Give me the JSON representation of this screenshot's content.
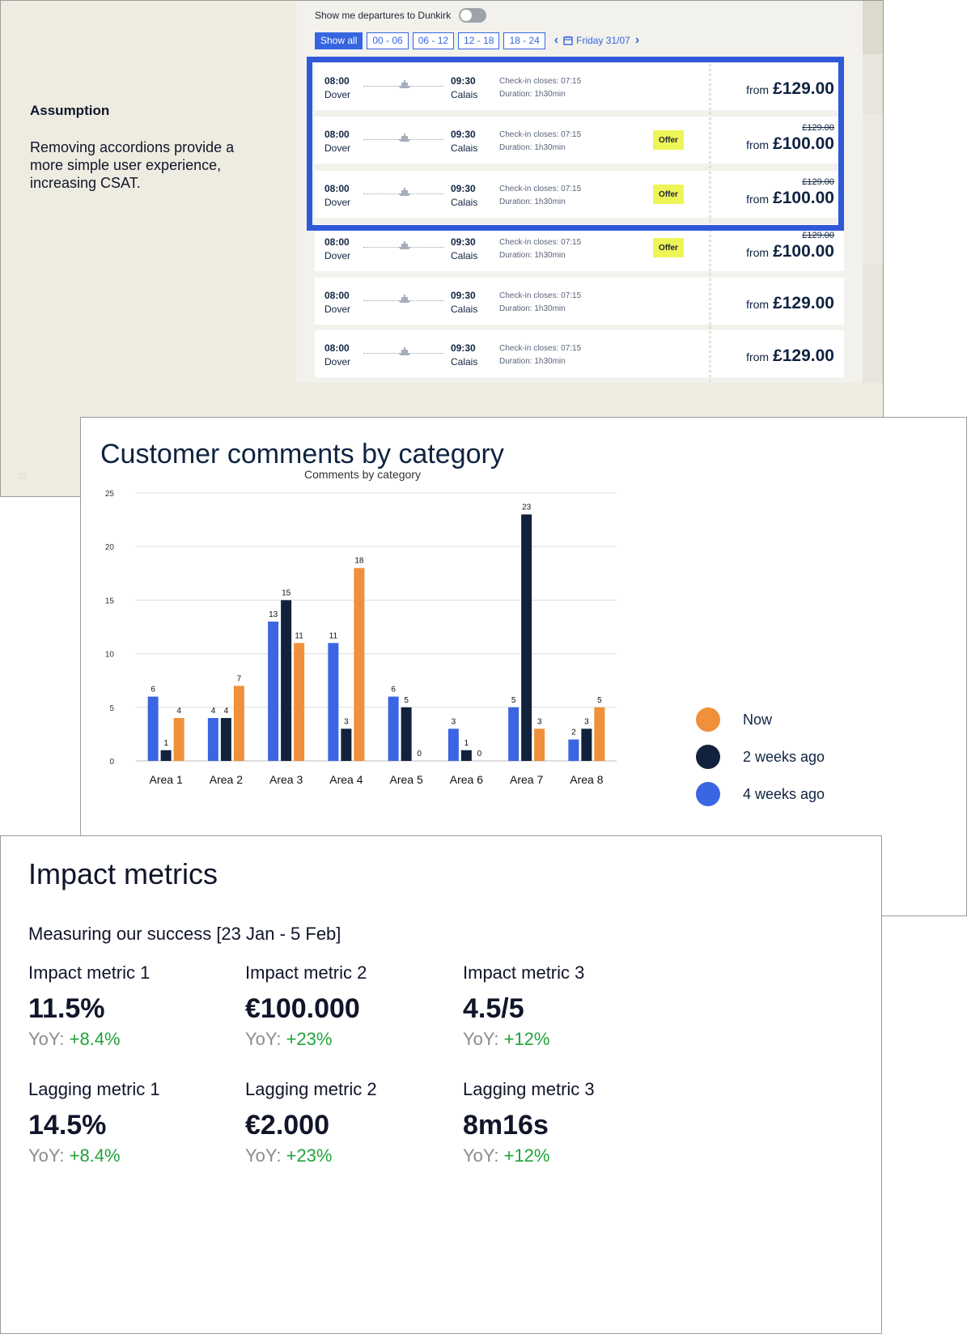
{
  "slide1": {
    "assumption_title": "Assumption",
    "assumption_text": "Removing accordions provide a more simple user experience, increasing CSAT.",
    "slide_number": "12",
    "toggle_label": "Show me departures to Dunkirk",
    "filters": [
      "Show all",
      "00 - 06",
      "06 - 12",
      "12 - 18",
      "18 - 24"
    ],
    "active_filter": "Show all",
    "date": "Friday 31/07",
    "trips": [
      {
        "dep_time": "08:00",
        "dep_port": "Dover",
        "arr_time": "09:30",
        "arr_port": "Calais",
        "checkin": "Check-in closes:  07:15",
        "duration": "Duration:  1h30min",
        "offer": "",
        "old_price": "",
        "from": "from",
        "price": "£129.00"
      },
      {
        "dep_time": "08:00",
        "dep_port": "Dover",
        "arr_time": "09:30",
        "arr_port": "Calais",
        "checkin": "Check-in closes:  07:15",
        "duration": "Duration:  1h30min",
        "offer": "Offer",
        "old_price": "£129.00",
        "from": "from",
        "price": "£100.00"
      },
      {
        "dep_time": "08:00",
        "dep_port": "Dover",
        "arr_time": "09:30",
        "arr_port": "Calais",
        "checkin": "Check-in closes:  07:15",
        "duration": "Duration:  1h30min",
        "offer": "Offer",
        "old_price": "£129.00",
        "from": "from",
        "price": "£100.00"
      },
      {
        "dep_time": "08:00",
        "dep_port": "Dover",
        "arr_time": "09:30",
        "arr_port": "Calais",
        "checkin": "Check-in closes:  07:15",
        "duration": "Duration:  1h30min",
        "offer": "Offer",
        "old_price": "£129.00",
        "from": "from",
        "price": "£100.00"
      },
      {
        "dep_time": "08:00",
        "dep_port": "Dover",
        "arr_time": "09:30",
        "arr_port": "Calais",
        "checkin": "Check-in closes:  07:15",
        "duration": "Duration:  1h30min",
        "offer": "",
        "old_price": "",
        "from": "from",
        "price": "£129.00"
      },
      {
        "dep_time": "08:00",
        "dep_port": "Dover",
        "arr_time": "09:30",
        "arr_port": "Calais",
        "checkin": "Check-in closes:  07:15",
        "duration": "Duration:  1h30min",
        "offer": "",
        "old_price": "",
        "from": "from",
        "price": "£129.00"
      }
    ]
  },
  "slide2": {
    "heading": "Customer comments by category"
  },
  "chart_data": {
    "type": "bar",
    "title": "Comments by category",
    "xlabel": "",
    "ylabel": "",
    "ylim": [
      0,
      25
    ],
    "yticks": [
      0,
      5,
      10,
      15,
      20,
      25
    ],
    "grid": true,
    "legend_position": "right",
    "categories": [
      "Area 1",
      "Area 2",
      "Area 3",
      "Area 4",
      "Area 5",
      "Area 6",
      "Area 7",
      "Area 8"
    ],
    "series": [
      {
        "name": "4 weeks ago",
        "color": "#3a66e3",
        "values": [
          6,
          4,
          13,
          11,
          6,
          3,
          5,
          2
        ]
      },
      {
        "name": "2 weeks ago",
        "color": "#12223d",
        "values": [
          1,
          4,
          15,
          3,
          5,
          1,
          23,
          3
        ]
      },
      {
        "name": "Now",
        "color": "#f0903a",
        "values": [
          4,
          7,
          11,
          18,
          0,
          0,
          3,
          5
        ]
      }
    ],
    "legend_order": [
      "Now",
      "2 weeks ago",
      "4 weeks ago"
    ]
  },
  "slide3": {
    "title": "Impact metrics",
    "subtitle": "Measuring our success [23 Jan - 5 Feb]",
    "yoy_prefix": "YoY:",
    "metrics": [
      {
        "label": "Impact metric 1",
        "value": "11.5%",
        "delta": "+8.4%"
      },
      {
        "label": "Impact metric 2",
        "value": "€100.000",
        "delta": "+23%"
      },
      {
        "label": "Impact metric 3",
        "value": "4.5/5",
        "delta": "+12%"
      },
      {
        "label": "Lagging metric 1",
        "value": "14.5%",
        "delta": "+8.4%"
      },
      {
        "label": "Lagging metric 2",
        "value": "€2.000",
        "delta": "+23%"
      },
      {
        "label": "Lagging metric 3",
        "value": "8m16s",
        "delta": "+12%"
      }
    ]
  },
  "colors": {
    "accent_blue": "#3565e0",
    "highlight_blue": "#2f59d9",
    "offer_yellow": "#eef557",
    "navy": "#0f2341",
    "orange": "#f0903a",
    "green": "#20a33a",
    "slide_bg": "#eeece1"
  }
}
